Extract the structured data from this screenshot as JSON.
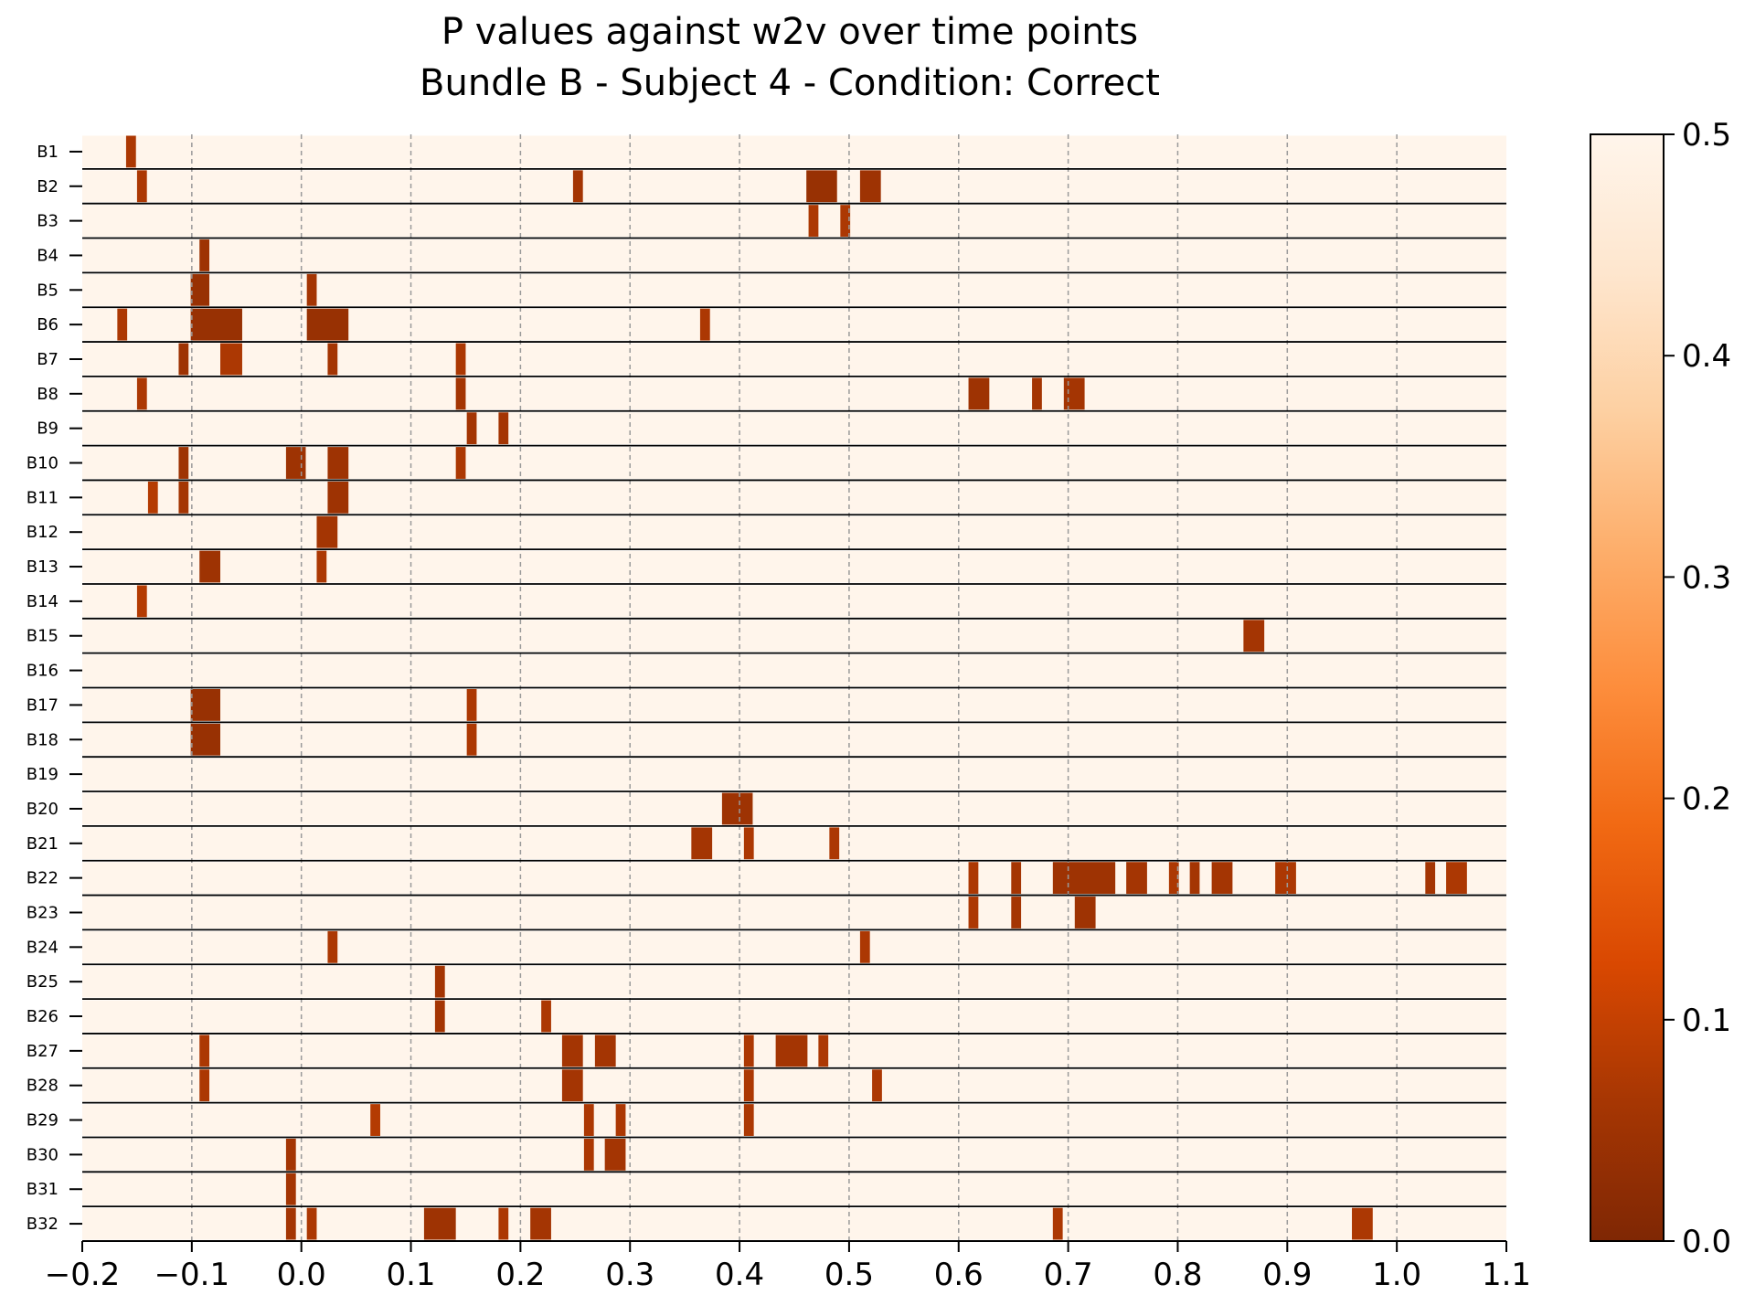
{
  "chart_data": {
    "type": "heatmap",
    "title": [
      "P values against w2v over time points",
      "Bundle B - Subject 4 - Condition: Correct"
    ],
    "xlabel": "",
    "ylabel": "",
    "xlim": [
      -0.2,
      1.1
    ],
    "xticks": [
      "−0.2",
      "−0.1",
      "0.0",
      "0.1",
      "0.2",
      "0.3",
      "0.4",
      "0.5",
      "0.6",
      "0.7",
      "0.8",
      "0.9",
      "1.0",
      "1.1"
    ],
    "grid": "vertical dashed lines at x ticks",
    "rows": [
      "B1",
      "B2",
      "B3",
      "B4",
      "B5",
      "B6",
      "B7",
      "B8",
      "B9",
      "B10",
      "B11",
      "B12",
      "B13",
      "B14",
      "B15",
      "B16",
      "B17",
      "B18",
      "B19",
      "B20",
      "B21",
      "B22",
      "B23",
      "B24",
      "B25",
      "B26",
      "B27",
      "B28",
      "B29",
      "B30",
      "B31",
      "B32"
    ],
    "colormap": [
      "#7f2704",
      "#a63603",
      "#d94801",
      "#f16913",
      "#fd8d3c",
      "#fdae6b",
      "#fdd0a2",
      "#fee6ce",
      "#fff5eb"
    ],
    "colorbar": {
      "min": 0.0,
      "max": 0.5,
      "ticks": [
        "0.0",
        "0.1",
        "0.2",
        "0.3",
        "0.4",
        "0.5"
      ]
    },
    "background_value": 0.5,
    "significant_segments": [
      {
        "row": "B1",
        "intervals": [
          [
            -0.16,
            -0.151,
            0.07
          ]
        ]
      },
      {
        "row": "B2",
        "intervals": [
          [
            -0.15,
            -0.141,
            0.07
          ],
          [
            0.248,
            0.257,
            0.06
          ],
          [
            0.461,
            0.489,
            0.04
          ],
          [
            0.51,
            0.529,
            0.05
          ]
        ]
      },
      {
        "row": "B3",
        "intervals": [
          [
            0.463,
            0.472,
            0.07
          ],
          [
            0.492,
            0.501,
            0.07
          ]
        ]
      },
      {
        "row": "B4",
        "intervals": [
          [
            -0.093,
            -0.084,
            0.05
          ]
        ]
      },
      {
        "row": "B5",
        "intervals": [
          [
            -0.101,
            -0.084,
            0.04
          ],
          [
            0.005,
            0.014,
            0.06
          ]
        ]
      },
      {
        "row": "B6",
        "intervals": [
          [
            -0.168,
            -0.159,
            0.07
          ],
          [
            -0.101,
            -0.054,
            0.04
          ],
          [
            0.005,
            0.043,
            0.04
          ],
          [
            0.364,
            0.373,
            0.07
          ]
        ]
      },
      {
        "row": "B7",
        "intervals": [
          [
            -0.112,
            -0.103,
            0.05
          ],
          [
            -0.074,
            -0.054,
            0.07
          ],
          [
            0.024,
            0.033,
            0.06
          ],
          [
            0.141,
            0.15,
            0.07
          ]
        ]
      },
      {
        "row": "B8",
        "intervals": [
          [
            -0.15,
            -0.141,
            0.07
          ],
          [
            0.141,
            0.15,
            0.06
          ],
          [
            0.609,
            0.628,
            0.05
          ],
          [
            0.667,
            0.676,
            0.06
          ],
          [
            0.696,
            0.715,
            0.06
          ]
        ]
      },
      {
        "row": "B9",
        "intervals": [
          [
            0.151,
            0.16,
            0.06
          ],
          [
            0.18,
            0.189,
            0.06
          ]
        ]
      },
      {
        "row": "B10",
        "intervals": [
          [
            -0.112,
            -0.103,
            0.05
          ],
          [
            -0.014,
            0.004,
            0.05
          ],
          [
            0.024,
            0.043,
            0.05
          ],
          [
            0.141,
            0.15,
            0.07
          ]
        ]
      },
      {
        "row": "B11",
        "intervals": [
          [
            -0.14,
            -0.131,
            0.08
          ],
          [
            -0.112,
            -0.103,
            0.06
          ],
          [
            0.024,
            0.043,
            0.05
          ]
        ]
      },
      {
        "row": "B12",
        "intervals": [
          [
            0.014,
            0.033,
            0.06
          ]
        ]
      },
      {
        "row": "B13",
        "intervals": [
          [
            -0.093,
            -0.074,
            0.05
          ],
          [
            0.014,
            0.023,
            0.07
          ]
        ]
      },
      {
        "row": "B14",
        "intervals": [
          [
            -0.15,
            -0.141,
            0.08
          ]
        ]
      },
      {
        "row": "B15",
        "intervals": [
          [
            0.86,
            0.879,
            0.06
          ]
        ]
      },
      {
        "row": "B16",
        "intervals": []
      },
      {
        "row": "B17",
        "intervals": [
          [
            -0.101,
            -0.074,
            0.04
          ],
          [
            0.151,
            0.16,
            0.07
          ]
        ]
      },
      {
        "row": "B18",
        "intervals": [
          [
            -0.101,
            -0.074,
            0.04
          ],
          [
            0.151,
            0.16,
            0.07
          ]
        ]
      },
      {
        "row": "B19",
        "intervals": []
      },
      {
        "row": "B20",
        "intervals": [
          [
            0.384,
            0.412,
            0.05
          ]
        ]
      },
      {
        "row": "B21",
        "intervals": [
          [
            0.356,
            0.375,
            0.06
          ],
          [
            0.404,
            0.413,
            0.07
          ],
          [
            0.482,
            0.491,
            0.07
          ]
        ]
      },
      {
        "row": "B22",
        "intervals": [
          [
            0.609,
            0.618,
            0.07
          ],
          [
            0.648,
            0.657,
            0.06
          ],
          [
            0.686,
            0.743,
            0.05
          ],
          [
            0.753,
            0.772,
            0.06
          ],
          [
            0.792,
            0.801,
            0.07
          ],
          [
            0.811,
            0.82,
            0.06
          ],
          [
            0.831,
            0.85,
            0.06
          ],
          [
            0.889,
            0.908,
            0.07
          ],
          [
            1.026,
            1.035,
            0.06
          ],
          [
            1.045,
            1.064,
            0.07
          ]
        ]
      },
      {
        "row": "B23",
        "intervals": [
          [
            0.609,
            0.618,
            0.07
          ],
          [
            0.648,
            0.657,
            0.06
          ],
          [
            0.706,
            0.725,
            0.05
          ]
        ]
      },
      {
        "row": "B24",
        "intervals": [
          [
            0.024,
            0.033,
            0.07
          ],
          [
            0.51,
            0.519,
            0.07
          ]
        ]
      },
      {
        "row": "B25",
        "intervals": [
          [
            0.122,
            0.131,
            0.06
          ]
        ]
      },
      {
        "row": "B26",
        "intervals": [
          [
            0.122,
            0.131,
            0.06
          ],
          [
            0.219,
            0.228,
            0.07
          ]
        ]
      },
      {
        "row": "B27",
        "intervals": [
          [
            -0.093,
            -0.084,
            0.07
          ],
          [
            0.238,
            0.257,
            0.06
          ],
          [
            0.268,
            0.287,
            0.06
          ],
          [
            0.404,
            0.413,
            0.07
          ],
          [
            0.433,
            0.462,
            0.06
          ],
          [
            0.472,
            0.481,
            0.07
          ]
        ]
      },
      {
        "row": "B28",
        "intervals": [
          [
            -0.093,
            -0.084,
            0.07
          ],
          [
            0.238,
            0.257,
            0.06
          ],
          [
            0.404,
            0.413,
            0.07
          ],
          [
            0.521,
            0.53,
            0.07
          ]
        ]
      },
      {
        "row": "B29",
        "intervals": [
          [
            0.063,
            0.072,
            0.08
          ],
          [
            0.258,
            0.267,
            0.07
          ],
          [
            0.287,
            0.296,
            0.07
          ],
          [
            0.404,
            0.413,
            0.07
          ]
        ]
      },
      {
        "row": "B30",
        "intervals": [
          [
            -0.014,
            -0.005,
            0.06
          ],
          [
            0.258,
            0.267,
            0.07
          ],
          [
            0.277,
            0.296,
            0.06
          ]
        ]
      },
      {
        "row": "B31",
        "intervals": [
          [
            -0.014,
            -0.005,
            0.06
          ]
        ]
      },
      {
        "row": "B32",
        "intervals": [
          [
            -0.014,
            -0.005,
            0.06
          ],
          [
            0.005,
            0.014,
            0.07
          ],
          [
            0.112,
            0.141,
            0.05
          ],
          [
            0.18,
            0.189,
            0.07
          ],
          [
            0.209,
            0.228,
            0.06
          ],
          [
            0.686,
            0.695,
            0.07
          ],
          [
            0.959,
            0.978,
            0.07
          ]
        ]
      }
    ]
  }
}
